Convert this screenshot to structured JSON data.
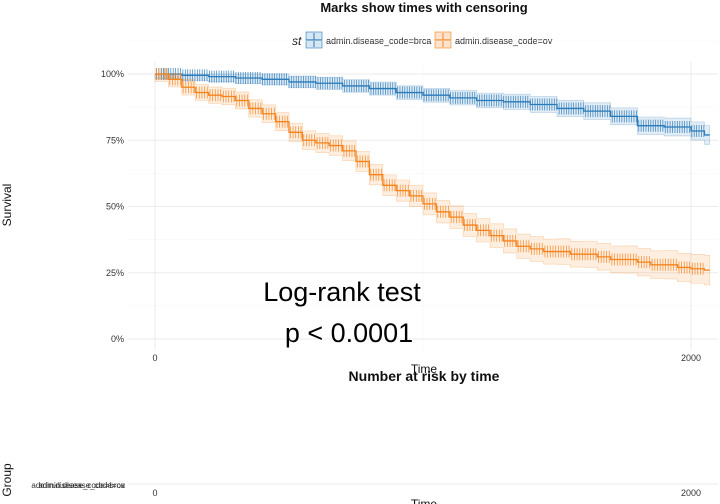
{
  "chart_data": [
    {
      "type": "line",
      "title": "Marks show times with censoring",
      "ylabel": "Survival",
      "xlabel": "Time",
      "legend": {
        "title": "st",
        "placement": "top",
        "entries": [
          "admin.disease_code=brca",
          "admin.disease_code=ov"
        ]
      },
      "colors": {
        "brca": "#2b7bba",
        "ov": "#f5841f"
      },
      "xlim": [
        0,
        2050
      ],
      "ylim": [
        0,
        1
      ],
      "x_ticks": [
        0,
        2000
      ],
      "y_ticks": [
        0,
        0.25,
        0.5,
        0.75,
        1.0
      ],
      "y_tick_labels": [
        "0%",
        "25%",
        "50%",
        "75%",
        "100%"
      ],
      "grid": true,
      "confidence_bands": true,
      "censor_marks": true,
      "series": [
        {
          "name": "admin.disease_code=brca",
          "x": [
            0,
            100,
            200,
            300,
            400,
            500,
            600,
            700,
            800,
            900,
            1000,
            1100,
            1200,
            1300,
            1400,
            1500,
            1600,
            1700,
            1800,
            1900,
            2000,
            2050
          ],
          "y": [
            1.0,
            0.995,
            0.99,
            0.985,
            0.98,
            0.97,
            0.965,
            0.955,
            0.945,
            0.93,
            0.92,
            0.91,
            0.9,
            0.895,
            0.885,
            0.87,
            0.86,
            0.84,
            0.805,
            0.8,
            0.785,
            0.77
          ]
        },
        {
          "name": "admin.disease_code=ov",
          "x": [
            0,
            50,
            100,
            150,
            200,
            250,
            300,
            350,
            400,
            450,
            500,
            550,
            600,
            650,
            700,
            750,
            800,
            850,
            900,
            950,
            1000,
            1050,
            1100,
            1150,
            1200,
            1250,
            1300,
            1350,
            1400,
            1450,
            1500,
            1550,
            1600,
            1650,
            1700,
            1750,
            1800,
            1850,
            1900,
            1950,
            2000,
            2050
          ],
          "y": [
            1.0,
            0.98,
            0.95,
            0.93,
            0.92,
            0.915,
            0.9,
            0.87,
            0.85,
            0.82,
            0.78,
            0.75,
            0.74,
            0.73,
            0.71,
            0.67,
            0.62,
            0.58,
            0.56,
            0.54,
            0.51,
            0.48,
            0.46,
            0.43,
            0.41,
            0.39,
            0.37,
            0.35,
            0.34,
            0.33,
            0.33,
            0.32,
            0.32,
            0.31,
            0.3,
            0.3,
            0.29,
            0.28,
            0.28,
            0.27,
            0.265,
            0.26
          ]
        }
      ],
      "annotation": {
        "line1": "Log-rank test",
        "line2": "p < 0.0001"
      }
    },
    {
      "type": "table",
      "title": "Number at risk by time",
      "ylabel": "Group",
      "xlabel": "Time",
      "x_ticks": [
        0,
        2000
      ],
      "rows": [
        "admin.disease_code=brca",
        "admin.disease_code=ov"
      ]
    }
  ]
}
